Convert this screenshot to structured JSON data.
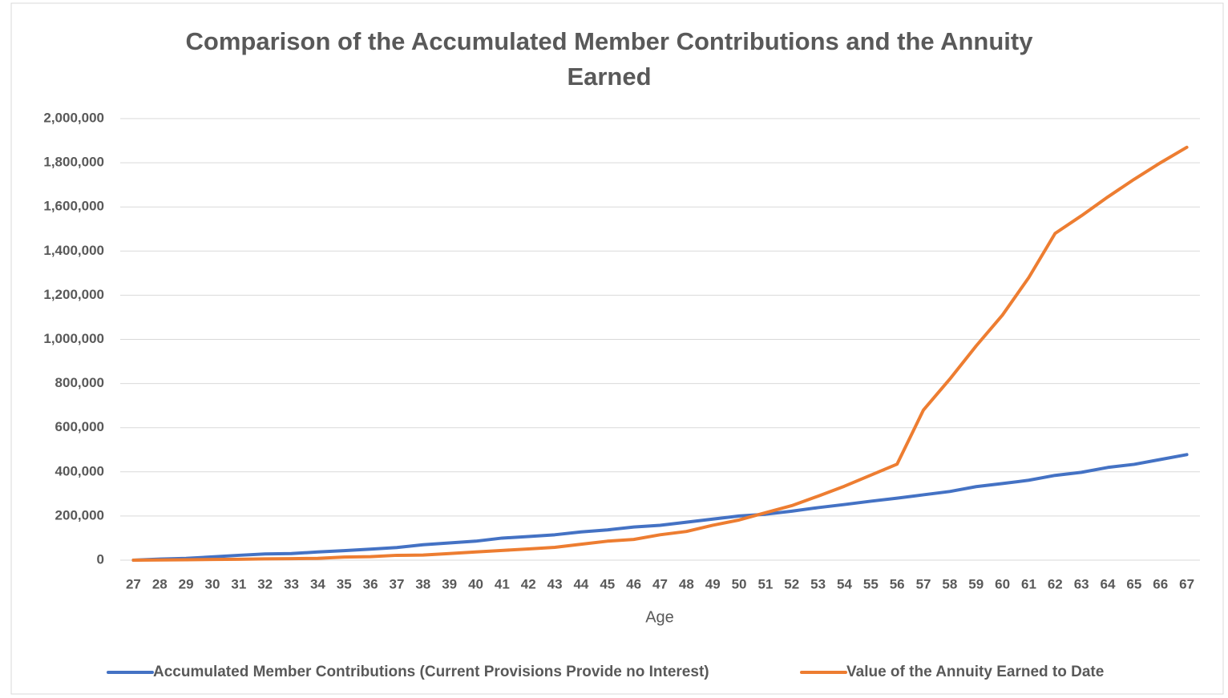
{
  "chart_data": {
    "type": "line",
    "title": "Comparison of the Accumulated Member Contributions and the Annuity Earned",
    "x_label": "Age",
    "categories": [
      27,
      28,
      29,
      30,
      31,
      32,
      33,
      34,
      35,
      36,
      37,
      38,
      39,
      40,
      41,
      42,
      43,
      44,
      45,
      46,
      47,
      48,
      49,
      50,
      51,
      52,
      53,
      54,
      55,
      56,
      57,
      58,
      59,
      60,
      61,
      62,
      63,
      64,
      65,
      66,
      67
    ],
    "series": [
      {
        "name": "Accumulated Member Contributions (Current Provisions Provide no Interest)",
        "color": "#4472c4",
        "values": [
          0,
          5000,
          8000,
          15000,
          22000,
          28000,
          30000,
          37000,
          43000,
          50000,
          57000,
          70000,
          78000,
          86000,
          100000,
          107000,
          115000,
          128000,
          137000,
          150000,
          158000,
          172000,
          186000,
          200000,
          208000,
          222000,
          238000,
          252000,
          267000,
          281000,
          296000,
          311000,
          333000,
          347000,
          362000,
          384000,
          398000,
          420000,
          434000,
          456000,
          478000
        ]
      },
      {
        "name": "Value of the Annuity Earned to Date",
        "color": "#ed7d31",
        "values": [
          0,
          1000,
          2000,
          3000,
          4000,
          6000,
          7000,
          8000,
          14000,
          16000,
          22000,
          23000,
          30000,
          37000,
          44000,
          51000,
          58000,
          72000,
          86000,
          94000,
          115000,
          130000,
          158000,
          182000,
          215000,
          247000,
          290000,
          335000,
          385000,
          435000,
          680000,
          820000,
          970000,
          1110000,
          1280000,
          1480000,
          1560000,
          1645000,
          1725000,
          1800000,
          1870000
        ]
      }
    ],
    "ylim": [
      0,
      2000000
    ],
    "yticks": [
      0,
      {
        "value": 200000,
        "label": "200,000"
      },
      {
        "value": 400000,
        "label": "400,000"
      },
      {
        "value": 600000,
        "label": "600,000"
      },
      {
        "value": 800000,
        "label": "800,000"
      },
      {
        "value": 1000000,
        "label": "1,000,000"
      },
      {
        "value": 1200000,
        "label": "1,200,000"
      },
      {
        "value": 1400000,
        "label": "1,400,000"
      },
      {
        "value": 1600000,
        "label": "1,600,000"
      },
      {
        "value": 1800000,
        "label": "1,800,000"
      },
      {
        "value": 2000000,
        "label": "2,000,000"
      }
    ],
    "grid": true,
    "legend": "bottom"
  }
}
